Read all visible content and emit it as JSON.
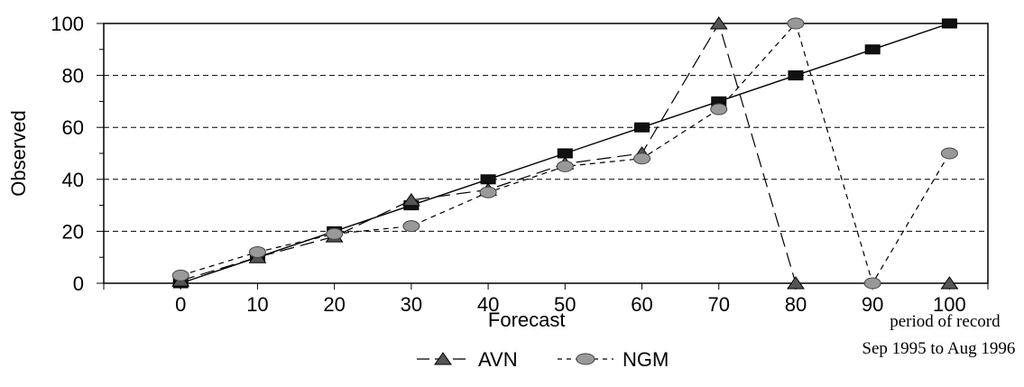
{
  "chart_data": {
    "type": "line",
    "xlabel": "Forecast",
    "ylabel": "Observed",
    "x": [
      0,
      10,
      20,
      30,
      40,
      50,
      60,
      70,
      80,
      90,
      100
    ],
    "xlim": [
      -10,
      105
    ],
    "ylim": [
      0,
      100
    ],
    "xticks": [
      "0",
      "10",
      "20",
      "30",
      "40",
      "50",
      "60",
      "70",
      "80",
      "90",
      "100"
    ],
    "yticks": [
      "0",
      "20",
      "40",
      "60",
      "80",
      "100"
    ],
    "grid": "horizontal dashed",
    "legend_position": "bottom-center",
    "series": [
      {
        "key": "perfect",
        "marker": "square",
        "style": "solid",
        "color": "#000000",
        "values": [
          0,
          10,
          20,
          30,
          40,
          50,
          60,
          70,
          80,
          90,
          100
        ]
      },
      {
        "key": "avn",
        "name": "AVN",
        "marker": "triangle",
        "style": "long-dash",
        "color": "#000000",
        "values": [
          1,
          10,
          18,
          32,
          36,
          46,
          50,
          100,
          0,
          null,
          0
        ]
      },
      {
        "key": "ngm",
        "name": "NGM",
        "marker": "ellipse",
        "style": "short-dash",
        "color": "#888888",
        "values": [
          3,
          12,
          19,
          22,
          35,
          45,
          48,
          67,
          100,
          0,
          50
        ]
      }
    ],
    "annotation": {
      "line1": "period of record",
      "line2": "Sep 1995 to Aug 1996"
    }
  }
}
